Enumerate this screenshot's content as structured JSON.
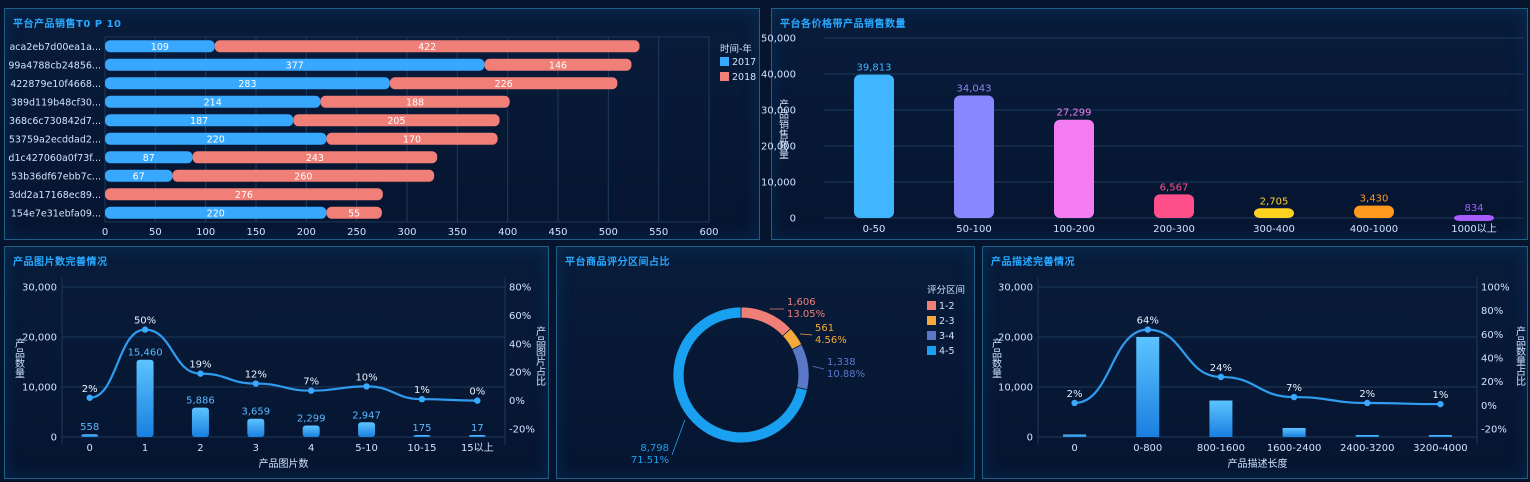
{
  "colors": {
    "blue": "#38a8ff",
    "salmon": "#f07f78",
    "title": "#28a8ff",
    "axis": "#cfe3ff",
    "grid": "#1d3a5c"
  },
  "panels": {
    "p1_title": "平台产品销售T0 P 10",
    "p2_title": "平台各价格带产品销售数量",
    "p3_title": "产品图片数完善情况",
    "p4_title": "平台商品评分区间占比",
    "p5_title": "产品描述完善情况"
  },
  "chart_data": [
    {
      "id": "top10",
      "type": "bar",
      "orientation": "horizontal",
      "stacked": true,
      "categories": [
        "aca2eb7d00ea1a...",
        "99a4788cb24856...",
        "422879e10f4668...",
        "389d119b48cf30...",
        "368c6c730842d7...",
        "53759a2ecddad2...",
        "d1c427060a0f73f...",
        "53b36df67ebb7c...",
        "3dd2a17168ec89...",
        "154e7e31ebfa09..."
      ],
      "series": [
        {
          "name": "2017",
          "values": [
            109,
            377,
            283,
            214,
            187,
            220,
            87,
            67,
            null,
            220
          ],
          "color": "#38a8ff"
        },
        {
          "name": "2018",
          "values": [
            422,
            146,
            226,
            188,
            205,
            170,
            243,
            260,
            276,
            55
          ],
          "color": "#f07f78"
        }
      ],
      "legend_title": "时间-年",
      "legend_position": "right",
      "xlim": [
        0,
        600
      ],
      "xticks": [
        0,
        50,
        100,
        150,
        200,
        250,
        300,
        350,
        400,
        450,
        500,
        550,
        600
      ]
    },
    {
      "id": "price_band",
      "type": "bar",
      "categories": [
        "0-50",
        "50-100",
        "100-200",
        "200-300",
        "300-400",
        "400-1000",
        "1000以上"
      ],
      "values": [
        39813,
        34043,
        27299,
        6567,
        2705,
        3430,
        834
      ],
      "value_labels": [
        "39,813",
        "34,043",
        "27,299",
        "6,567",
        "2,705",
        "3,430",
        "834"
      ],
      "colors": [
        "#3fb6ff",
        "#8a86ff",
        "#f27cf0",
        "#ff4f8a",
        "#ffd21f",
        "#ff9a1f",
        "#a65cff"
      ],
      "ylabel": "产品销售数量",
      "ylim": [
        0,
        50000
      ],
      "yticks": [
        "50,000",
        "40,000",
        "30,000",
        "20,000",
        "10,000",
        "0"
      ]
    },
    {
      "id": "image_count",
      "type": "bar",
      "combo": "bar+line",
      "categories": [
        "0",
        "1",
        "2",
        "3",
        "4",
        "5-10",
        "10-15",
        "15以上"
      ],
      "bar_values": [
        558,
        15460,
        5886,
        3659,
        2299,
        2947,
        175,
        17
      ],
      "bar_labels": [
        "558",
        "15,460",
        "5,886",
        "3,659",
        "2,299",
        "2,947",
        "175",
        "17"
      ],
      "line_values": [
        2,
        50,
        19,
        12,
        7,
        10,
        1,
        0
      ],
      "line_labels": [
        "2%",
        "50%",
        "19%",
        "12%",
        "7%",
        "10%",
        "1%",
        "0%"
      ],
      "xlabel": "产品图片数",
      "ylabel": "产品数量",
      "y2label": "产品图片占比",
      "ylim": [
        0,
        30000
      ],
      "yticks": [
        "30,000",
        "20,000",
        "10,000",
        "0"
      ],
      "y2lim": [
        -20,
        80
      ],
      "y2ticks": [
        "80%",
        "60%",
        "40%",
        "20%",
        "0%",
        "-20%"
      ]
    },
    {
      "id": "rating",
      "type": "pie",
      "donut": true,
      "categories": [
        "1-2",
        "2-3",
        "3-4",
        "4-5"
      ],
      "values": [
        1606,
        561,
        1338,
        8798
      ],
      "value_labels": [
        "1,606",
        "561",
        "1,338",
        "8,798"
      ],
      "percent_labels": [
        "13.05%",
        "4.56%",
        "10.88%",
        "71.51%"
      ],
      "colors": [
        "#f07f78",
        "#f5a93b",
        "#5b78c8",
        "#1aa0f0"
      ],
      "legend_title": "评分区间",
      "legend_position": "right"
    },
    {
      "id": "desc_length",
      "type": "bar",
      "combo": "bar+line",
      "categories": [
        "0",
        "0-800",
        "800-1600",
        "1600-2400",
        "2400-3200",
        "3200-4000"
      ],
      "bar_values": [
        500,
        20000,
        7300,
        1800,
        400,
        200
      ],
      "line_values": [
        2,
        64,
        24,
        7,
        2,
        1
      ],
      "line_labels": [
        "2%",
        "64%",
        "24%",
        "7%",
        "2%",
        "1%"
      ],
      "xlabel": "产品描述长度",
      "ylabel": "产品数量",
      "y2label": "产品数量占比",
      "ylim": [
        0,
        30000
      ],
      "yticks": [
        "30,000",
        "20,000",
        "10,000",
        "0"
      ],
      "y2lim": [
        -20,
        100
      ],
      "y2ticks": [
        "100%",
        "80%",
        "60%",
        "40%",
        "20%",
        "0%",
        "-20%"
      ]
    }
  ]
}
